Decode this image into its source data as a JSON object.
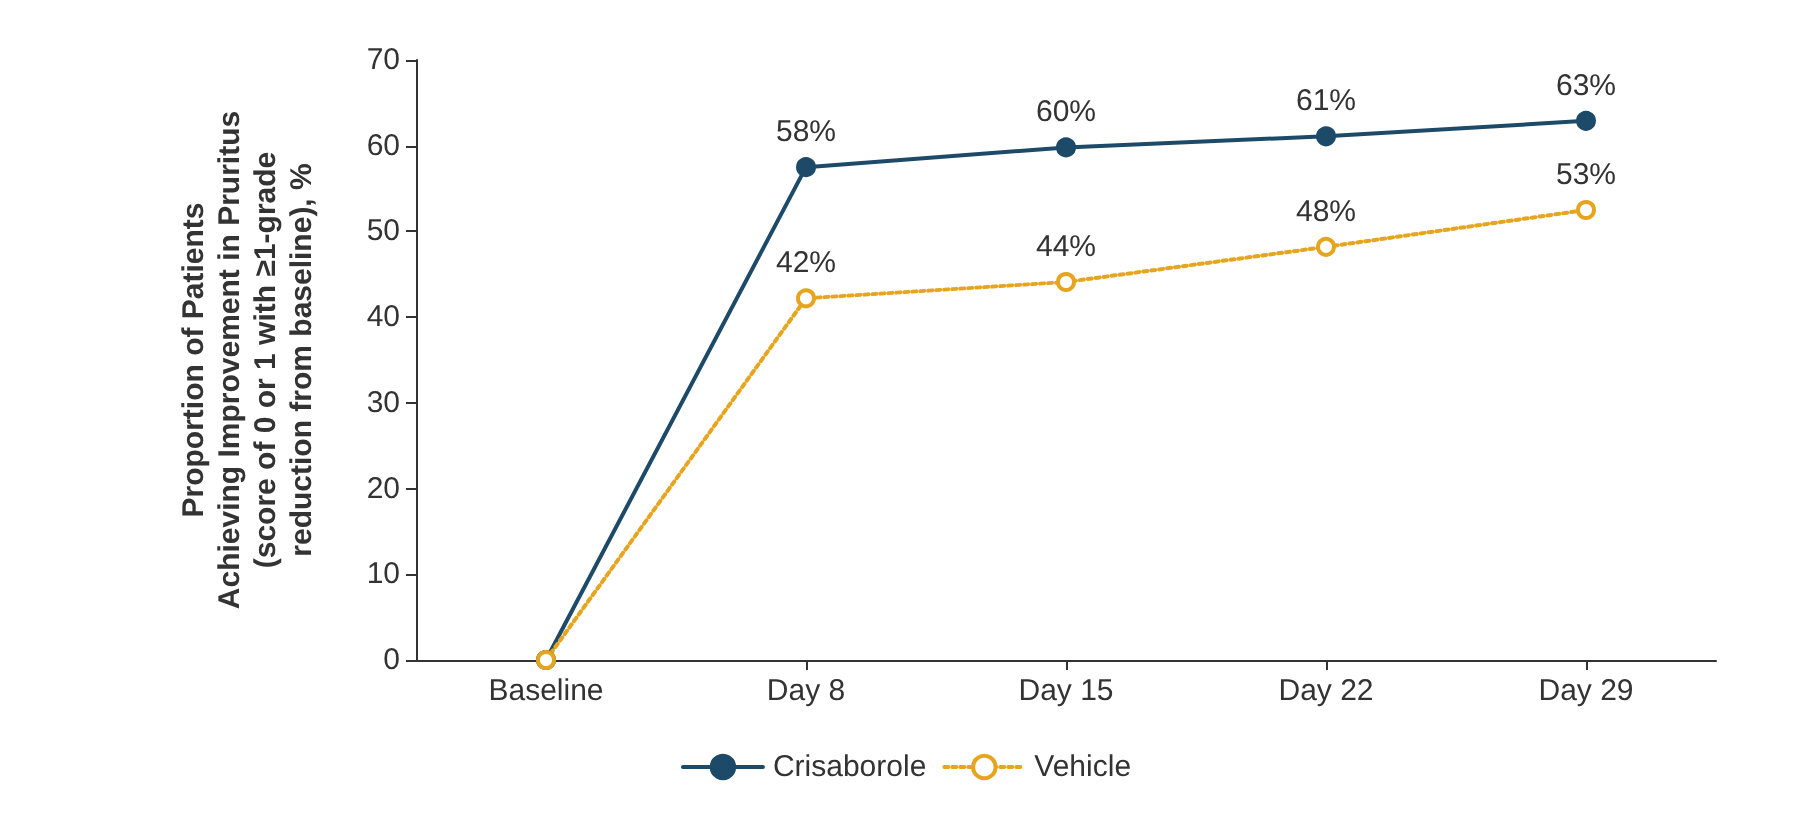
{
  "chart_data": {
    "type": "line",
    "ylabel": "Proportion of Patients\nAchieving Improvement in Pruritus\n(score of 0 or 1 with ≥1-grade\nreduction from baseline), %",
    "categories": [
      "Baseline",
      "Day 8",
      "Day 15",
      "Day 22",
      "Day 29"
    ],
    "series": [
      {
        "name": "Crisaborole",
        "color": "#1d4a68",
        "values": [
          0,
          57.5,
          59.8,
          61.1,
          62.9
        ],
        "value_labels": [
          null,
          "58%",
          "60%",
          "61%",
          "63%"
        ],
        "line_style": "solid"
      },
      {
        "name": "Vehicle",
        "color": "#e6a51e",
        "values": [
          0,
          42.2,
          44.1,
          48.2,
          52.5
        ],
        "value_labels": [
          null,
          "42%",
          "44%",
          "48%",
          "53%"
        ],
        "line_style": "dotted"
      }
    ],
    "ylim": [
      0,
      70
    ],
    "yticks": [
      0,
      10,
      20,
      30,
      40,
      50,
      60,
      70
    ],
    "grid": false,
    "legend": "bottom",
    "marker": "circle"
  }
}
